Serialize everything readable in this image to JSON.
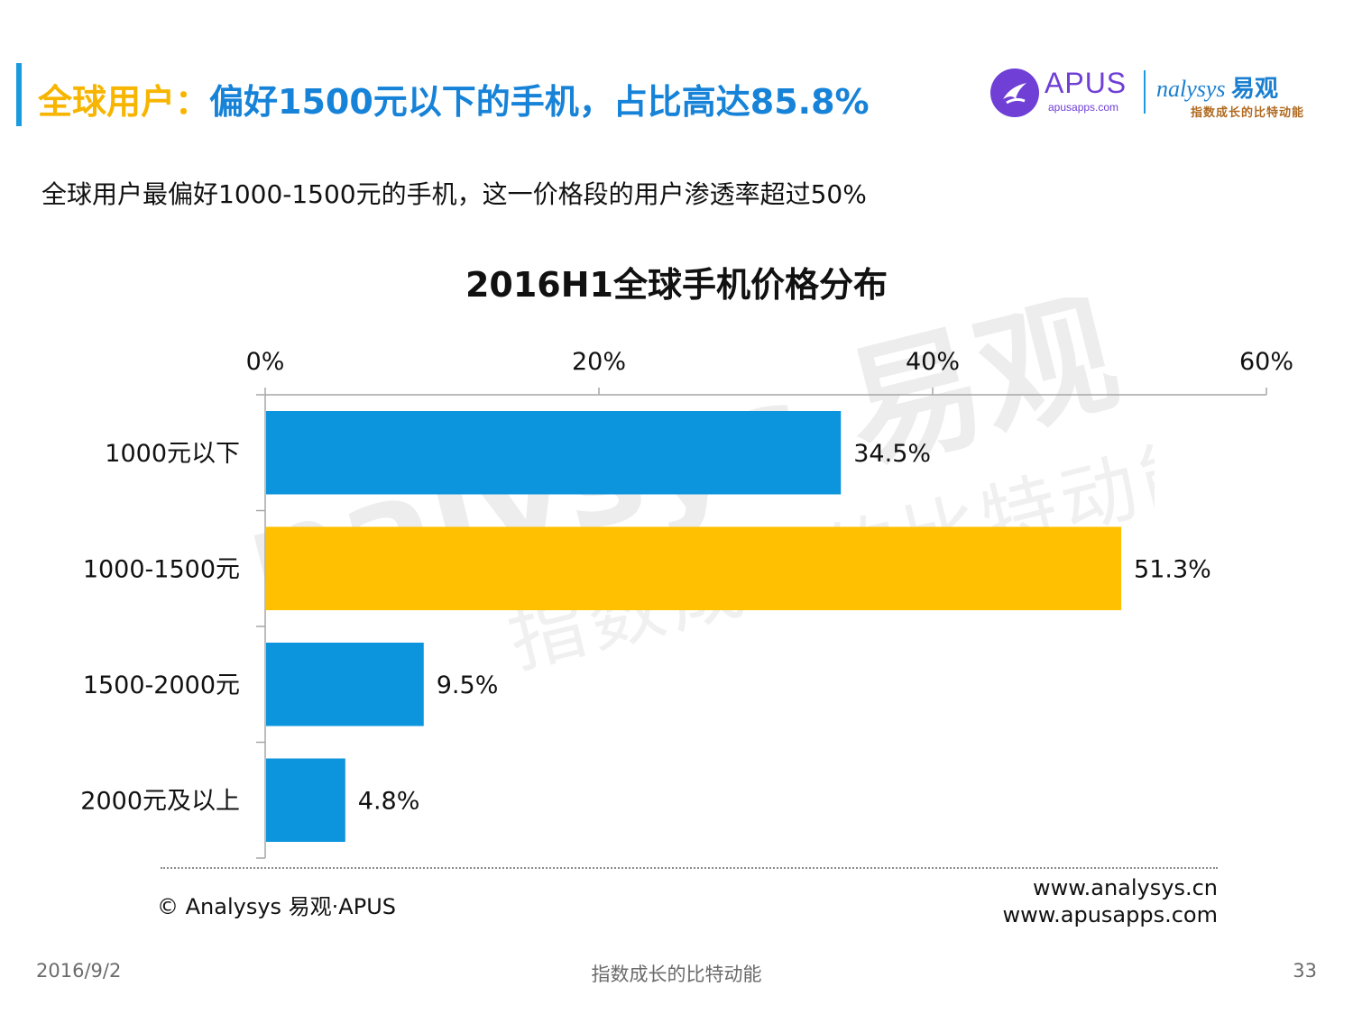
{
  "header": {
    "title_highlight": "全球用户：",
    "title_main": "偏好1500元以下的手机，占比高达85.8%",
    "subtitle": "全球用户最偏好1000-1500元的手机，这一价格段的用户渗透率超过50%"
  },
  "logos": {
    "apus_name": "APUS",
    "apus_url": "apusapps.com",
    "analysys_name": "nalysys",
    "analysys_cn": "易观",
    "analysys_slogan": "指数成长的比特动能"
  },
  "watermark": {
    "brand": "nalysys 易观",
    "slogan": "指数成长的比特动能"
  },
  "colors": {
    "accent": "#1a9be0",
    "title_highlight": "#f7b500",
    "title_main": "#1683d8",
    "bar_default": "#0c94dc",
    "bar_highlight": "#fec000"
  },
  "chart_data": {
    "type": "bar",
    "orientation": "horizontal",
    "title": "2016H1全球手机价格分布",
    "categories": [
      "1000元以下",
      "1000-1500元",
      "1500-2000元",
      "2000元及以上"
    ],
    "values": [
      34.5,
      51.3,
      9.5,
      4.8
    ],
    "value_labels": [
      "34.5%",
      "51.3%",
      "9.5%",
      "4.8%"
    ],
    "highlight_index": 1,
    "xlim": [
      0,
      60
    ],
    "x_ticks": [
      0,
      20,
      40,
      60
    ],
    "x_tick_labels": [
      "0%",
      "20%",
      "40%",
      "60%"
    ],
    "x_axis_position": "top",
    "grid": false,
    "legend": "none"
  },
  "footer": {
    "source": "© Analysys 易观·APUS",
    "url1": "www.analysys.cn",
    "url2": "www.apusapps.com",
    "date": "2016/9/2",
    "slogan": "指数成长的比特动能",
    "page": "33"
  }
}
